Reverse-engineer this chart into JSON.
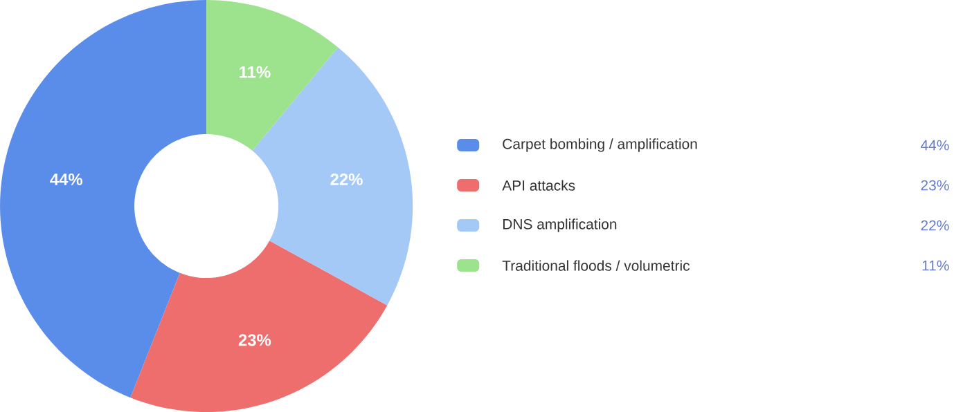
{
  "chart_data": {
    "type": "donut",
    "categories": [
      "Carpet bombing / amplification",
      "API attacks",
      "DNS amplification",
      "Traditional floods / volumetric"
    ],
    "values": [
      44,
      23,
      22,
      11
    ],
    "colors": [
      "#5a8cea",
      "#ee6d6d",
      "#a4c9f6",
      "#9de28c"
    ],
    "value_labels": [
      "44%",
      "23%",
      "22%",
      "11%"
    ],
    "legend": "right"
  }
}
